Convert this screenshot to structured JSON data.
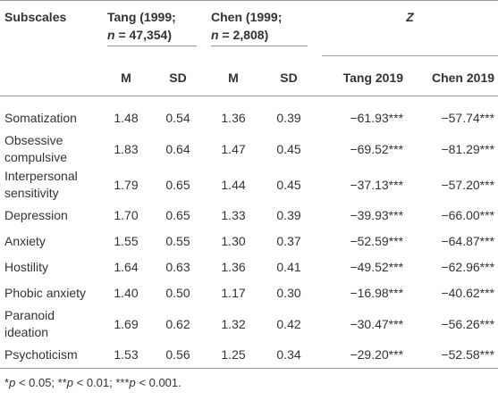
{
  "table": {
    "header": {
      "first": "Subscales",
      "groups": [
        {
          "line1": "Tang (1999;",
          "var": "n",
          "line2": "= 47,354)"
        },
        {
          "line1": "Chen (1999;",
          "var": "n",
          "line2": "= 2,808)"
        },
        {
          "label": "Z"
        }
      ],
      "sub": [
        "M",
        "SD",
        "M",
        "SD",
        "Tang 2019",
        "Chen 2019"
      ]
    },
    "rows": [
      [
        "Somatization",
        "1.48",
        "0.54",
        "1.36",
        "0.39",
        "−61.93***",
        "−57.74***"
      ],
      [
        "Obsessive compulsive",
        "1.83",
        "0.64",
        "1.47",
        "0.45",
        "−69.52***",
        "−81.29***"
      ],
      [
        "Interpersonal sensitivity",
        "1.79",
        "0.65",
        "1.44",
        "0.45",
        "−37.13***",
        "−57.20***"
      ],
      [
        "Depression",
        "1.70",
        "0.65",
        "1.33",
        "0.39",
        "−39.93***",
        "−66.00***"
      ],
      [
        "Anxiety",
        "1.55",
        "0.55",
        "1.30",
        "0.37",
        "−52.59***",
        "−64.87***"
      ],
      [
        "Hostility",
        "1.64",
        "0.63",
        "1.36",
        "0.41",
        "−49.52***",
        "−62.96***"
      ],
      [
        "Phobic anxiety",
        "1.40",
        "0.50",
        "1.17",
        "0.30",
        "−16.98***",
        "−40.62***"
      ],
      [
        "Paranoid ideation",
        "1.69",
        "0.62",
        "1.32",
        "0.42",
        "−30.47***",
        "−56.26***"
      ],
      [
        "Psychoticism",
        "1.53",
        "0.56",
        "1.25",
        "0.34",
        "−29.20***",
        "−52.58***"
      ]
    ],
    "footnote": [
      "*",
      "p",
      "< 0.05; **",
      "p",
      "< 0.01; ***",
      "p",
      "< 0.001."
    ]
  }
}
